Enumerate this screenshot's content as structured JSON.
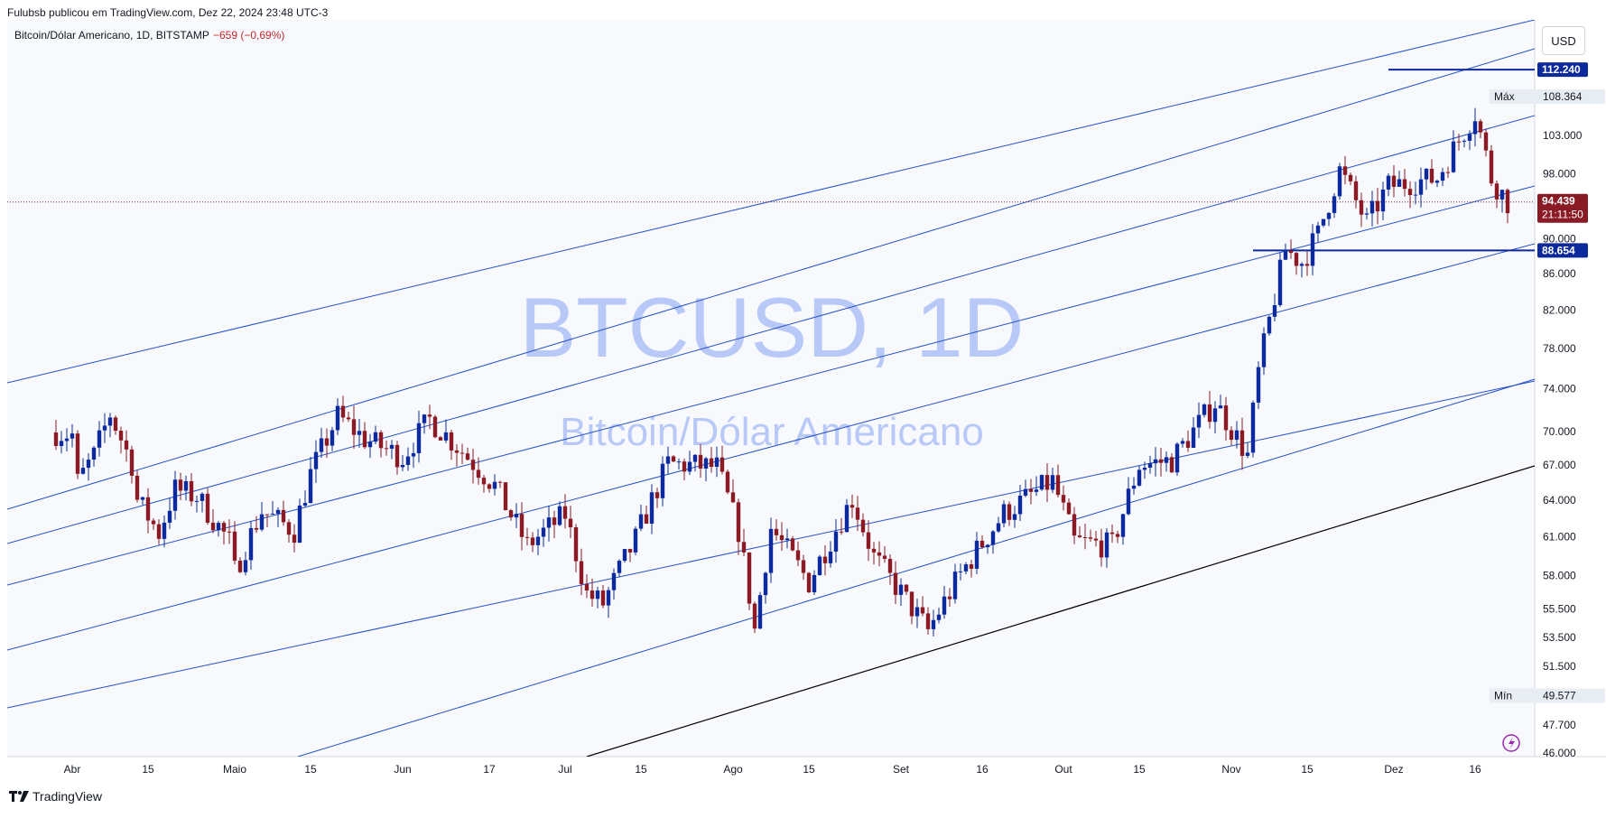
{
  "header": {
    "publisher_line": "Fulubsb publicou em TradingView.com, Dez 22, 2024 23:48 UTC-3"
  },
  "symbol_info": {
    "name": "Bitcoin/Dólar Americano, 1D, BITSTAMP",
    "change": "−659 (−0,69%)"
  },
  "currency_button": "USD",
  "watermark": {
    "ticker": "BTCUSD, 1D",
    "description": "Bitcoin/Dólar Americano"
  },
  "footer": {
    "brand": "TradingView"
  },
  "colors": {
    "up": "#0d2a9c",
    "down": "#8a1a24",
    "channel_line": "#2450c8",
    "support_line": "#000000",
    "hline": "#0d2a9c",
    "price_badge": "#8a1a24",
    "watermark": "#9db5f5"
  },
  "chart_data": {
    "type": "candlestick",
    "scale": "log",
    "y_ticks": [
      46000,
      47700,
      49577,
      51500,
      53500,
      55500,
      58000,
      61000,
      64000,
      67000,
      70000,
      74000,
      78000,
      82000,
      86000,
      90000,
      94439,
      98000,
      103000,
      108364
    ],
    "y_tick_labels": [
      "46.000",
      "47.700",
      "49.577",
      "51.500",
      "53.500",
      "55.500",
      "58.000",
      "61.000",
      "64.000",
      "67.000",
      "70.000",
      "74.000",
      "78.000",
      "82.000",
      "86.000",
      "90.000",
      "94.439",
      "98.000",
      "103.000",
      "108.364"
    ],
    "x_tick_labels": [
      {
        "label": "Abr",
        "date": "2024-04-01"
      },
      {
        "label": "15",
        "date": "2024-04-15"
      },
      {
        "label": "Maio",
        "date": "2024-05-01"
      },
      {
        "label": "15",
        "date": "2024-05-15"
      },
      {
        "label": "Jun",
        "date": "2024-06-01"
      },
      {
        "label": "17",
        "date": "2024-06-17"
      },
      {
        "label": "Jul",
        "date": "2024-07-01"
      },
      {
        "label": "15",
        "date": "2024-07-15"
      },
      {
        "label": "Ago",
        "date": "2024-08-01"
      },
      {
        "label": "15",
        "date": "2024-08-15"
      },
      {
        "label": "Set",
        "date": "2024-09-01"
      },
      {
        "label": "16",
        "date": "2024-09-16"
      },
      {
        "label": "Out",
        "date": "2024-10-01"
      },
      {
        "label": "15",
        "date": "2024-10-15"
      },
      {
        "label": "Nov",
        "date": "2024-11-01"
      },
      {
        "label": "15",
        "date": "2024-11-15"
      },
      {
        "label": "Dez",
        "date": "2024-12-01"
      },
      {
        "label": "16",
        "date": "2024-12-16"
      }
    ],
    "last_price": {
      "value": 94439,
      "label": "94.439",
      "countdown": "21:11:50"
    },
    "max_label": {
      "text": "Máx",
      "value": "108.364"
    },
    "min_label": {
      "text": "Mín",
      "value": "49.577"
    },
    "horizontal_levels": [
      {
        "value": 112240,
        "label": "112.240",
        "from_date": "2024-11-30"
      },
      {
        "value": 88654,
        "label": "88.654",
        "from_date": "2024-11-05"
      }
    ],
    "closes": [
      {
        "date": "2024-03-29",
        "c": 69900
      },
      {
        "date": "2024-04-01",
        "c": 69700
      },
      {
        "date": "2024-04-02",
        "c": 65500
      },
      {
        "date": "2024-04-05",
        "c": 67800
      },
      {
        "date": "2024-04-08",
        "c": 71600
      },
      {
        "date": "2024-04-12",
        "c": 67100
      },
      {
        "date": "2024-04-13",
        "c": 64000
      },
      {
        "date": "2024-04-17",
        "c": 61300
      },
      {
        "date": "2024-04-20",
        "c": 64900
      },
      {
        "date": "2024-04-24",
        "c": 64300
      },
      {
        "date": "2024-04-30",
        "c": 60600
      },
      {
        "date": "2024-05-01",
        "c": 58300
      },
      {
        "date": "2024-05-06",
        "c": 63100
      },
      {
        "date": "2024-05-12",
        "c": 61500
      },
      {
        "date": "2024-05-15",
        "c": 66200
      },
      {
        "date": "2024-05-20",
        "c": 71400
      },
      {
        "date": "2024-05-25",
        "c": 69300
      },
      {
        "date": "2024-06-01",
        "c": 67700
      },
      {
        "date": "2024-06-06",
        "c": 71100
      },
      {
        "date": "2024-06-12",
        "c": 68200
      },
      {
        "date": "2024-06-18",
        "c": 65200
      },
      {
        "date": "2024-06-24",
        "c": 60300
      },
      {
        "date": "2024-07-01",
        "c": 62800
      },
      {
        "date": "2024-07-05",
        "c": 56600
      },
      {
        "date": "2024-07-08",
        "c": 55900
      },
      {
        "date": "2024-07-14",
        "c": 60800
      },
      {
        "date": "2024-07-20",
        "c": 67100
      },
      {
        "date": "2024-07-29",
        "c": 66800
      },
      {
        "date": "2024-08-02",
        "c": 61500
      },
      {
        "date": "2024-08-05",
        "c": 54000
      },
      {
        "date": "2024-08-08",
        "c": 61700
      },
      {
        "date": "2024-08-15",
        "c": 57500
      },
      {
        "date": "2024-08-23",
        "c": 64100
      },
      {
        "date": "2024-08-27",
        "c": 59400
      },
      {
        "date": "2024-09-06",
        "c": 53950
      },
      {
        "date": "2024-09-12",
        "c": 58100
      },
      {
        "date": "2024-09-20",
        "c": 62900
      },
      {
        "date": "2024-09-29",
        "c": 65600
      },
      {
        "date": "2024-10-03",
        "c": 60600
      },
      {
        "date": "2024-10-10",
        "c": 60300
      },
      {
        "date": "2024-10-15",
        "c": 67000
      },
      {
        "date": "2024-10-21",
        "c": 67400
      },
      {
        "date": "2024-10-29",
        "c": 72700
      },
      {
        "date": "2024-11-04",
        "c": 67800
      },
      {
        "date": "2024-11-06",
        "c": 75600
      },
      {
        "date": "2024-11-11",
        "c": 88700
      },
      {
        "date": "2024-11-14",
        "c": 87300
      },
      {
        "date": "2024-11-17",
        "c": 90500
      },
      {
        "date": "2024-11-21",
        "c": 98400
      },
      {
        "date": "2024-11-26",
        "c": 91900
      },
      {
        "date": "2024-11-30",
        "c": 96400
      },
      {
        "date": "2024-12-05",
        "c": 97000
      },
      {
        "date": "2024-12-09",
        "c": 97400
      },
      {
        "date": "2024-12-16",
        "c": 106100
      },
      {
        "date": "2024-12-19",
        "c": 97400
      },
      {
        "date": "2024-12-22",
        "c": 94439
      }
    ]
  }
}
